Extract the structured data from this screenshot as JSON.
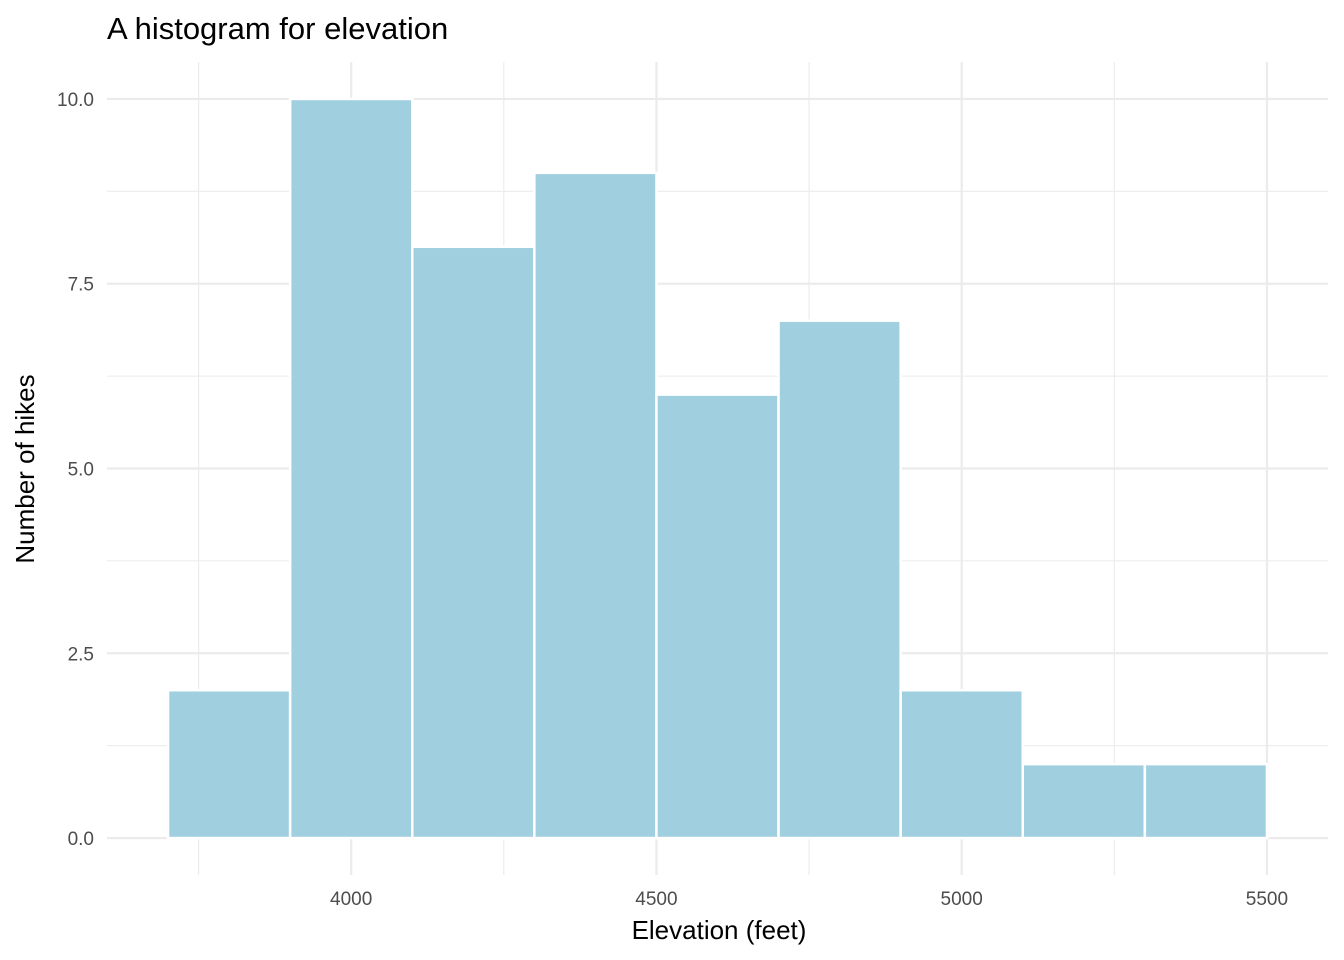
{
  "chart_data": {
    "type": "bar",
    "subtype": "histogram",
    "title": "A histogram for elevation",
    "xlabel": "Elevation (feet)",
    "ylabel": "Number of hikes",
    "bins": [
      {
        "from": 3700,
        "to": 3900,
        "count": 2
      },
      {
        "from": 3900,
        "to": 4100,
        "count": 10
      },
      {
        "from": 4100,
        "to": 4300,
        "count": 8
      },
      {
        "from": 4300,
        "to": 4500,
        "count": 9
      },
      {
        "from": 4500,
        "to": 4700,
        "count": 6
      },
      {
        "from": 4700,
        "to": 4900,
        "count": 7
      },
      {
        "from": 4900,
        "to": 5100,
        "count": 2
      },
      {
        "from": 5100,
        "to": 5300,
        "count": 1
      },
      {
        "from": 5300,
        "to": 5500,
        "count": 1
      }
    ],
    "xlim": [
      3600,
      5600
    ],
    "ylim": [
      -0.5,
      10.5
    ],
    "x_major_ticks": [
      4000,
      4500,
      5000,
      5500
    ],
    "x_tick_labels": [
      "4000",
      "4500",
      "5000",
      "5500"
    ],
    "x_minor_ticks": [
      3750,
      4250,
      4750,
      5250
    ],
    "y_major_ticks": [
      0,
      2.5,
      5,
      7.5,
      10
    ],
    "y_tick_labels": [
      "0.0",
      "2.5",
      "5.0",
      "7.5",
      "10.0"
    ],
    "y_minor_ticks": [
      1.25,
      3.75,
      6.25,
      8.75
    ],
    "bar_color": "#a0cfe0",
    "bar_outline": "#ffffff",
    "gridlines": true,
    "legend": "none"
  }
}
